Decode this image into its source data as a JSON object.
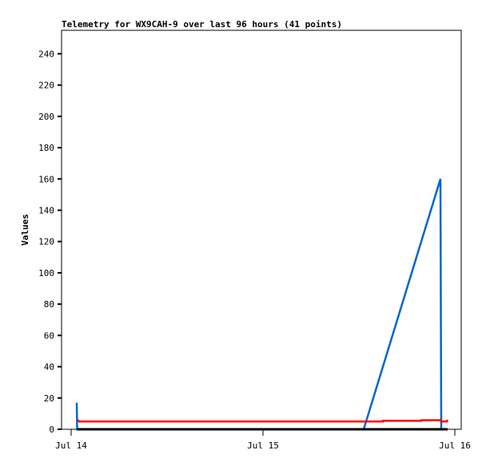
{
  "chart_data": {
    "type": "line",
    "title": "Telemetry for WX9CAH-9 over last 96 hours (41 points)",
    "xlabel": "",
    "ylabel": "Values",
    "ylim": [
      0,
      255
    ],
    "yticks": [
      0,
      20,
      40,
      60,
      80,
      100,
      120,
      140,
      160,
      180,
      200,
      220,
      240
    ],
    "xticks": [
      "Jul 14",
      "Jul 15",
      "Jul 16"
    ],
    "xlim": [
      "Jul 13 22:48",
      "Jul 16 00:48"
    ],
    "grid": false,
    "series": [
      {
        "color": "#0066cc",
        "points": [
          [
            "Jul 14 00:42",
            17
          ],
          [
            "Jul 14 00:45",
            0
          ],
          [
            "Jul 15 12:36",
            0
          ],
          [
            "Jul 15 22:12",
            160
          ],
          [
            "Jul 15 22:18",
            0
          ]
        ]
      },
      {
        "color": "#ff0000",
        "points": [
          [
            "Jul 14 00:48",
            6
          ],
          [
            "Jul 14 01:00",
            5
          ],
          [
            "Jul 15 15:00",
            5
          ],
          [
            "Jul 15 15:00",
            5.4
          ],
          [
            "Jul 15 19:48",
            5.4
          ],
          [
            "Jul 15 19:48",
            5.8
          ],
          [
            "Jul 15 22:18",
            5.8
          ],
          [
            "Jul 15 22:18",
            5
          ],
          [
            "Jul 15 23:00",
            5
          ],
          [
            "Jul 15 23:06",
            6
          ]
        ]
      },
      {
        "color": "#000000",
        "points": [
          [
            "Jul 14 00:42",
            0
          ],
          [
            "Jul 15 23:06",
            0
          ]
        ]
      }
    ]
  }
}
